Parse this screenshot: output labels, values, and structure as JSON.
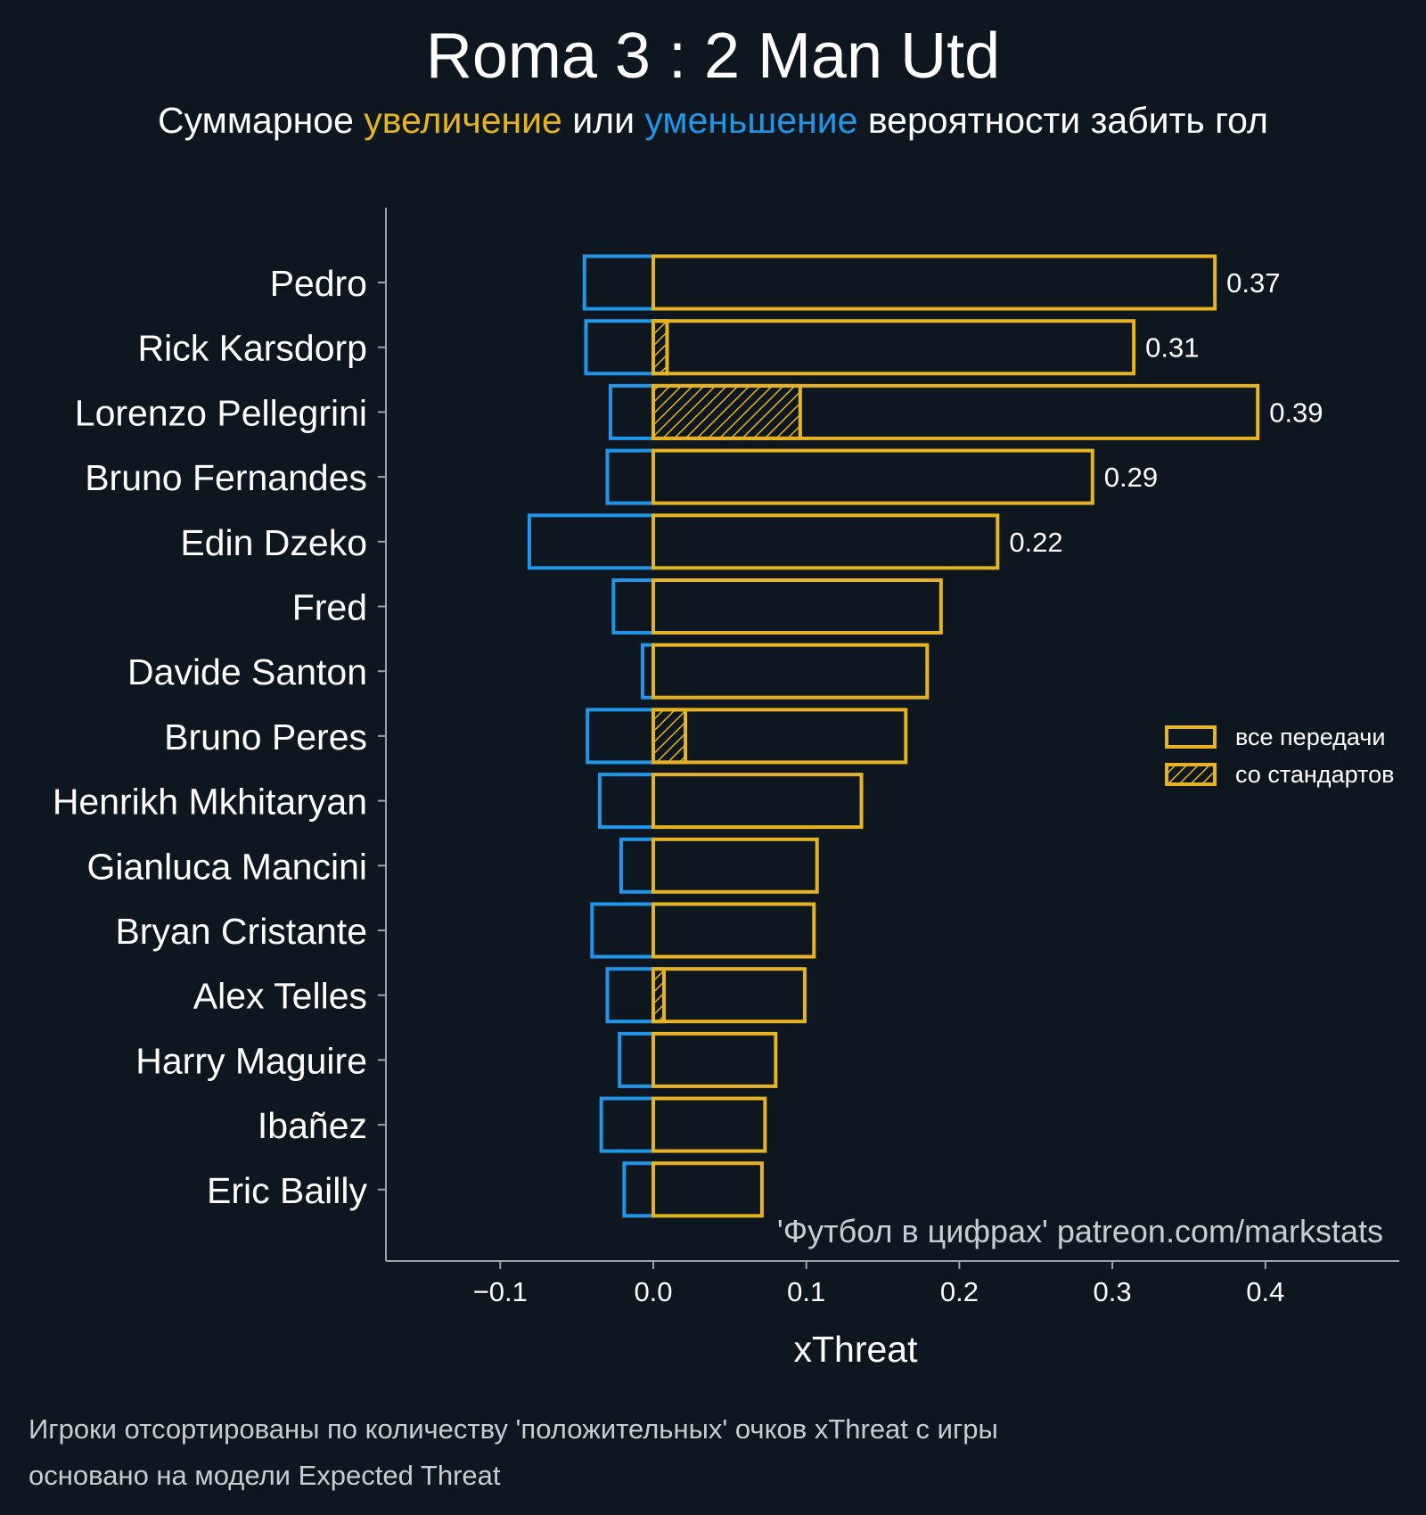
{
  "title": "Roma 3 : 2 Man Utd",
  "subtitle": {
    "prefix": "Суммарное ",
    "increase": "увеличение",
    "middle": " или ",
    "decrease": "уменьшение",
    "suffix": " вероятности забить гол"
  },
  "colors": {
    "background": "#0e1720",
    "positive": "#e6b422",
    "negative": "#2196e8",
    "axis": "#9aa3ab",
    "text": "#ffffff",
    "footnote": "#c8cdd2"
  },
  "watermark": "'Футбол в цифрах' patreon.com/markstats",
  "footnote": {
    "line1": "Игроки отсортированы по количеству 'положительных' очков xThreat с игры",
    "line2": "основано на модели Expected Threat"
  },
  "chart_data": {
    "type": "bar",
    "orientation": "horizontal",
    "xlabel": "xThreat",
    "xlim": [
      -0.175,
      0.49
    ],
    "xticks": [
      -0.1,
      0.0,
      0.1,
      0.2,
      0.3,
      0.4
    ],
    "xtick_labels": [
      "−0.1",
      "0.0",
      "0.1",
      "0.2",
      "0.3",
      "0.4"
    ],
    "categories": [
      "Pedro",
      "Rick Karsdorp",
      "Lorenzo Pellegrini",
      "Bruno Fernandes",
      "Edin Dzeko",
      "Fred",
      "Davide Santon",
      "Bruno Peres",
      "Henrikh Mkhitaryan",
      "Gianluca Mancini",
      "Bryan Cristante",
      "Alex Telles",
      "Harry Maguire",
      "Ibañez",
      "Eric Bailly"
    ],
    "series": [
      {
        "name": "все передачи",
        "style": "outline",
        "values": [
          0.367,
          0.314,
          0.395,
          0.287,
          0.225,
          0.188,
          0.179,
          0.165,
          0.136,
          0.107,
          0.105,
          0.099,
          0.08,
          0.073,
          0.071
        ]
      },
      {
        "name": "со стандартов",
        "style": "hatched",
        "values": [
          0.0,
          0.009,
          0.096,
          0.0,
          0.0,
          0.0,
          0.0,
          0.021,
          0.0,
          0.0,
          0.0,
          0.007,
          0.0,
          0.0,
          0.0
        ]
      },
      {
        "name": "negative",
        "style": "outline",
        "values": [
          -0.045,
          -0.044,
          -0.028,
          -0.03,
          -0.081,
          -0.026,
          -0.007,
          -0.043,
          -0.035,
          -0.021,
          -0.04,
          -0.03,
          -0.022,
          -0.034,
          -0.019
        ]
      }
    ],
    "value_labels": [
      "0.37",
      "0.31",
      "0.39",
      "0.29",
      "0.22",
      "",
      "",
      "",
      "",
      "",
      "",
      "",
      "",
      "",
      ""
    ],
    "legend": {
      "position": "right",
      "entries": [
        "все передачи",
        "со стандартов"
      ]
    }
  }
}
